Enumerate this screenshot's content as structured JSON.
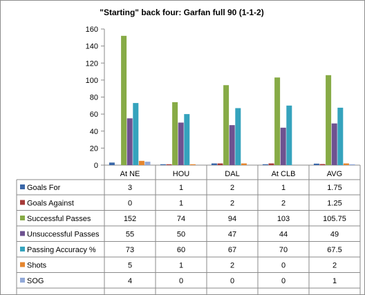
{
  "chart_data": {
    "type": "bar",
    "title": "\"Starting\" back four: Garfan full 90 (1-1-2)",
    "categories": [
      "At NE",
      "HOU",
      "DAL",
      "At CLB",
      "AVG"
    ],
    "ylim": [
      0,
      160
    ],
    "yticks": [
      0,
      20,
      40,
      60,
      80,
      100,
      120,
      140,
      160
    ],
    "grid": false,
    "legend": "table-left",
    "series": [
      {
        "name": "Goals For",
        "color": "#3a67a8",
        "values": [
          3,
          1,
          2,
          1,
          1.75
        ],
        "labels": [
          "3",
          "1",
          "2",
          "1",
          "1.75"
        ]
      },
      {
        "name": "Goals Against",
        "color": "#a63a38",
        "values": [
          0,
          1,
          2,
          2,
          1.25
        ],
        "labels": [
          "0",
          "1",
          "2",
          "2",
          "1.25"
        ]
      },
      {
        "name": "Successful Passes",
        "color": "#87ab46",
        "values": [
          152,
          74,
          94,
          103,
          105.75
        ],
        "labels": [
          "152",
          "74",
          "94",
          "103",
          "105.75"
        ]
      },
      {
        "name": "Unsuccessful Passes",
        "color": "#6e5290",
        "values": [
          55,
          50,
          47,
          44,
          49
        ],
        "labels": [
          "55",
          "50",
          "47",
          "44",
          "49"
        ]
      },
      {
        "name": "Passing Accuracy %",
        "color": "#35a3bd",
        "values": [
          73,
          60,
          67,
          70,
          67.5
        ],
        "labels": [
          "73",
          "60",
          "67",
          "70",
          "67.5"
        ]
      },
      {
        "name": "Shots",
        "color": "#e5862f",
        "values": [
          5,
          1,
          2,
          0,
          2
        ],
        "labels": [
          "5",
          "1",
          "2",
          "0",
          "2"
        ]
      },
      {
        "name": "SOG",
        "color": "#92a9d8",
        "values": [
          4,
          0,
          0,
          0,
          1
        ],
        "labels": [
          "4",
          "0",
          "0",
          "0",
          "1"
        ]
      }
    ]
  }
}
